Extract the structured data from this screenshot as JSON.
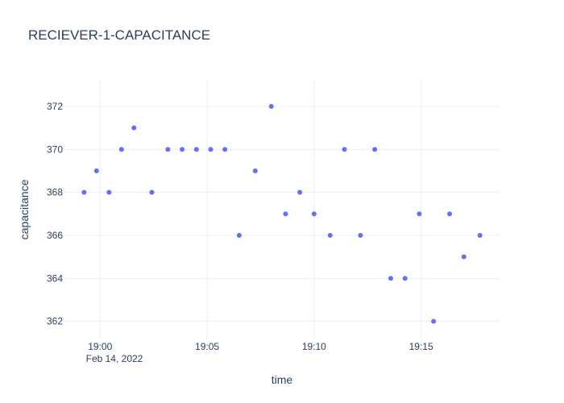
{
  "chart_data": {
    "type": "scatter",
    "title": "RECIEVER-1-CAPACITANCE",
    "xlabel": "time",
    "ylabel": "capacitance",
    "x_date_label": "Feb 14, 2022",
    "x": [
      "18:59:15",
      "18:59:50",
      "19:00:25",
      "19:01:00",
      "19:01:35",
      "19:02:25",
      "19:03:10",
      "19:03:50",
      "19:04:30",
      "19:05:10",
      "19:05:50",
      "19:06:30",
      "19:07:15",
      "19:08:00",
      "19:08:40",
      "19:09:20",
      "19:10:00",
      "19:10:45",
      "19:11:25",
      "19:12:10",
      "19:12:50",
      "19:13:35",
      "19:14:15",
      "19:14:55",
      "19:15:35",
      "19:16:20",
      "19:17:00",
      "19:17:45"
    ],
    "y": [
      368,
      369,
      368,
      370,
      371,
      368,
      370,
      370,
      370,
      370,
      370,
      366,
      369,
      372,
      367,
      368,
      367,
      366,
      370,
      366,
      370,
      364,
      364,
      367,
      362,
      367,
      365,
      366
    ],
    "x_ticks": [
      "19:00",
      "19:05",
      "19:10",
      "19:15"
    ],
    "y_ticks": [
      362,
      364,
      366,
      368,
      370,
      372
    ],
    "xlim": [
      "18:58:20",
      "19:18:40"
    ],
    "ylim": [
      361.2,
      373.2
    ],
    "grid": true,
    "marker_color": "#636efa",
    "gridline_color": "#ebf0f8"
  }
}
